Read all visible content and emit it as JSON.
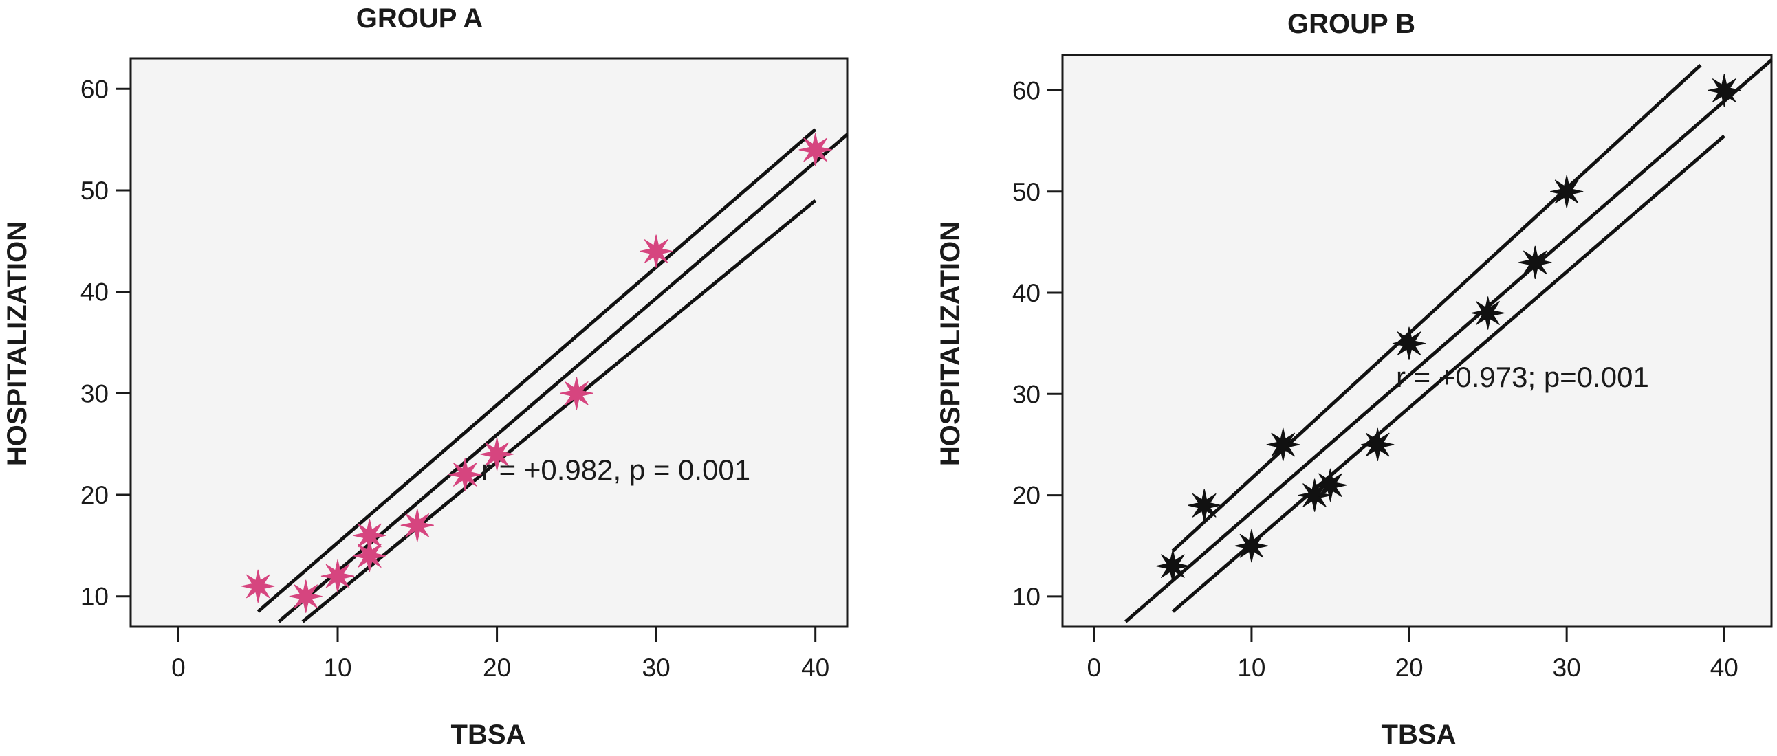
{
  "chart_data": [
    {
      "type": "scatter",
      "title": "GROUP A",
      "xlabel": "TBSA",
      "ylabel": "HOSPITALIZATION",
      "xlim": [
        -3,
        42
      ],
      "ylim": [
        7,
        63
      ],
      "xticks": [
        0,
        10,
        20,
        30,
        40
      ],
      "yticks": [
        10,
        20,
        30,
        40,
        50,
        60
      ],
      "marker_color": "#d6457f",
      "points": {
        "x": [
          5,
          8,
          10,
          12,
          12,
          15,
          18,
          20,
          25,
          30,
          40
        ],
        "y": [
          11,
          10,
          12,
          16,
          14,
          17,
          22,
          24,
          30,
          44,
          54
        ]
      },
      "lines": [
        {
          "name": "upper confidence",
          "x": [
            5,
            40
          ],
          "y": [
            8.5,
            56
          ]
        },
        {
          "name": "fit",
          "x": [
            6.3,
            42
          ],
          "y": [
            7.5,
            55.5
          ]
        },
        {
          "name": "lower confidence",
          "x": [
            7.8,
            40
          ],
          "y": [
            7.5,
            49
          ]
        }
      ],
      "annotation": "r = +0.982, p = 0.001"
    },
    {
      "type": "scatter",
      "title": "GROUP B",
      "xlabel": "TBSA",
      "ylabel": "HOSPITALIZATION",
      "xlim": [
        -2,
        43
      ],
      "ylim": [
        7,
        63.5
      ],
      "xticks": [
        0,
        10,
        20,
        30,
        40
      ],
      "yticks": [
        10,
        20,
        30,
        40,
        50,
        60
      ],
      "marker_color": "#111111",
      "points": {
        "x": [
          5,
          7,
          10,
          12,
          14,
          15,
          18,
          20,
          25,
          28,
          30,
          40
        ],
        "y": [
          13,
          19,
          15,
          25,
          20,
          21,
          25,
          35,
          38,
          43,
          50,
          60
        ]
      },
      "lines": [
        {
          "name": "upper confidence",
          "x": [
            5,
            38.5
          ],
          "y": [
            14.5,
            62.5
          ]
        },
        {
          "name": "fit",
          "x": [
            2,
            43
          ],
          "y": [
            7.5,
            63
          ]
        },
        {
          "name": "lower confidence",
          "x": [
            5,
            40
          ],
          "y": [
            8.5,
            55.5
          ]
        }
      ],
      "annotation": "r = +0.973; p=0.001"
    }
  ]
}
